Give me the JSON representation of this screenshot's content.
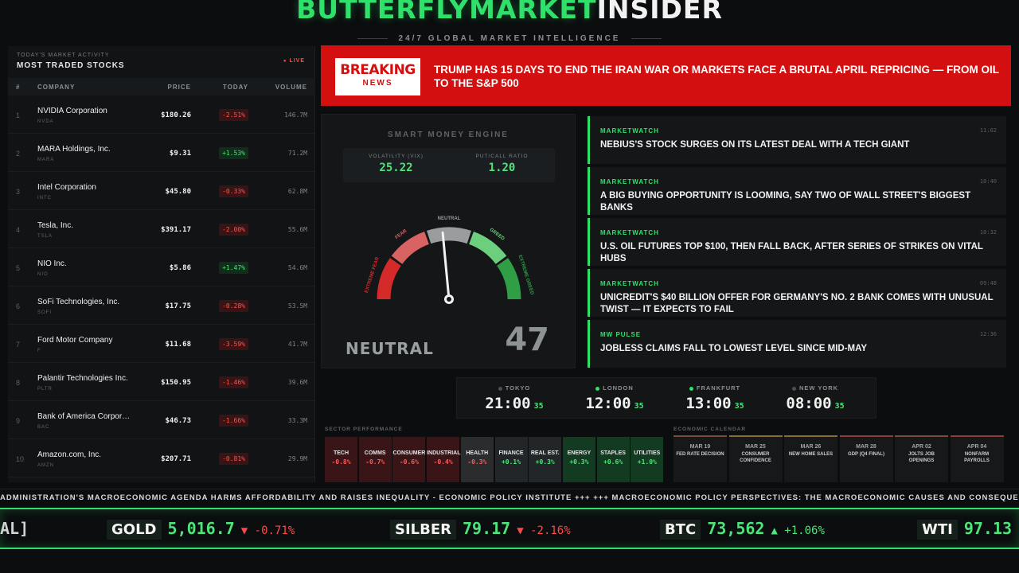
{
  "header": {
    "brand_green": "BUTTERFLYMARKET",
    "brand_white": "INSIDER",
    "tagline": "24/7 GLOBAL MARKET INTELLIGENCE"
  },
  "stocks": {
    "subtitle": "TODAY'S MARKET ACTIVITY",
    "title": "MOST TRADED STOCKS",
    "live": "LIVE",
    "columns": {
      "num": "#",
      "company": "COMPANY",
      "price": "PRICE",
      "today": "TODAY",
      "volume": "VOLUME"
    },
    "rows": [
      {
        "n": "1",
        "name": "NVIDIA Corporation",
        "ticker": "NVDA",
        "price": "$180.26",
        "change": "-2.51%",
        "dir": "neg",
        "volume": "146.7M"
      },
      {
        "n": "2",
        "name": "MARA Holdings, Inc.",
        "ticker": "MARA",
        "price": "$9.31",
        "change": "+1.53%",
        "dir": "pos",
        "volume": "71.2M"
      },
      {
        "n": "3",
        "name": "Intel Corporation",
        "ticker": "INTC",
        "price": "$45.80",
        "change": "-0.33%",
        "dir": "neg",
        "volume": "62.8M"
      },
      {
        "n": "4",
        "name": "Tesla, Inc.",
        "ticker": "TSLA",
        "price": "$391.17",
        "change": "-2.00%",
        "dir": "neg",
        "volume": "55.6M"
      },
      {
        "n": "5",
        "name": "NIO Inc.",
        "ticker": "NIO",
        "price": "$5.86",
        "change": "+1.47%",
        "dir": "pos",
        "volume": "54.6M"
      },
      {
        "n": "6",
        "name": "SoFi Technologies, Inc.",
        "ticker": "SOFI",
        "price": "$17.75",
        "change": "-0.28%",
        "dir": "neg",
        "volume": "53.5M"
      },
      {
        "n": "7",
        "name": "Ford Motor Company",
        "ticker": "F",
        "price": "$11.68",
        "change": "-3.59%",
        "dir": "neg",
        "volume": "41.7M"
      },
      {
        "n": "8",
        "name": "Palantir Technologies Inc.",
        "ticker": "PLTR",
        "price": "$150.95",
        "change": "-1.46%",
        "dir": "neg",
        "volume": "39.6M"
      },
      {
        "n": "9",
        "name": "Bank of America Corpor…",
        "ticker": "BAC",
        "price": "$46.73",
        "change": "-1.66%",
        "dir": "neg",
        "volume": "33.3M"
      },
      {
        "n": "10",
        "name": "Amazon.com, Inc.",
        "ticker": "AMZN",
        "price": "$207.71",
        "change": "-0.81%",
        "dir": "neg",
        "volume": "29.9M"
      }
    ]
  },
  "breaking": {
    "badge_top": "BREAKING",
    "badge_bottom": "NEWS",
    "headline": "TRUMP HAS 15 DAYS TO END THE IRAN WAR OR MARKETS FACE A BRUTAL APRIL REPRICING — FROM OIL TO THE S&P 500"
  },
  "smart_money": {
    "title": "SMART MONEY ENGINE",
    "vix_label": "VOLATILITY (VIX)",
    "vix_value": "25.22",
    "pcr_label": "PUT/CALL RATIO",
    "pcr_value": "1.20",
    "gauge_labels": {
      "extreme_fear": "EXTREME FEAR",
      "fear": "FEAR",
      "neutral": "NEUTRAL",
      "greed": "GREED",
      "extreme_greed": "EXTREME GREED"
    },
    "gauge_value": 47,
    "sentiment_label": "NEUTRAL",
    "sentiment_value": "47",
    "colors": {
      "extreme_fear": "#d42a2a",
      "fear": "#d96363",
      "neutral": "#9a9c9d",
      "greed": "#6bcf7d",
      "extreme_greed": "#2f9e45"
    }
  },
  "news": [
    {
      "source": "MARKETWATCH",
      "time": "11:02",
      "headline": "NEBIUS'S STOCK SURGES ON ITS LATEST DEAL WITH A TECH GIANT"
    },
    {
      "source": "MARKETWATCH",
      "time": "10:40",
      "headline": "A BIG BUYING OPPORTUNITY IS LOOMING, SAY TWO OF WALL STREET'S BIGGEST BANKS"
    },
    {
      "source": "MARKETWATCH",
      "time": "10:32",
      "headline": "U.S. OIL FUTURES TOP $100, THEN FALL BACK, AFTER SERIES OF STRIKES ON VITAL HUBS"
    },
    {
      "source": "MARKETWATCH",
      "time": "09:48",
      "headline": "UNICREDIT'S $40 BILLION OFFER FOR GERMANY'S NO. 2 BANK COMES WITH UNUSUAL TWIST — IT EXPECTS TO FAIL"
    },
    {
      "source": "MW PULSE",
      "time": "12:36",
      "headline": "JOBLESS CLAIMS FALL TO LOWEST LEVEL SINCE MID-MAY"
    }
  ],
  "clocks": [
    {
      "city": "TOKYO",
      "time": "21:00",
      "sec": "35",
      "status": "closed"
    },
    {
      "city": "LONDON",
      "time": "12:00",
      "sec": "35",
      "status": "open"
    },
    {
      "city": "FRANKFURT",
      "time": "13:00",
      "sec": "35",
      "status": "open"
    },
    {
      "city": "NEW YORK",
      "time": "08:00",
      "sec": "35",
      "status": "closed"
    }
  ],
  "sectors": {
    "title": "SECTOR PERFORMANCE",
    "items": [
      {
        "name": "TECH",
        "value": "-0.8%",
        "tone": "neg"
      },
      {
        "name": "COMMS",
        "value": "-0.7%",
        "tone": "neg"
      },
      {
        "name": "CONSUMER",
        "value": "-0.6%",
        "tone": "neg"
      },
      {
        "name": "INDUSTRIAL",
        "value": "-0.4%",
        "tone": "neg"
      },
      {
        "name": "HEALTH",
        "value": "-0.3%",
        "tone": "neutral"
      },
      {
        "name": "FINANCE",
        "value": "+0.1%",
        "tone": "flat"
      },
      {
        "name": "REAL EST.",
        "value": "+0.3%",
        "tone": "flat"
      },
      {
        "name": "ENERGY",
        "value": "+0.3%",
        "tone": "pos"
      },
      {
        "name": "STAPLES",
        "value": "+0.6%",
        "tone": "pos"
      },
      {
        "name": "UTILITIES",
        "value": "+1.0%",
        "tone": "pos"
      }
    ]
  },
  "calendar": {
    "title": "ECONOMIC CALENDAR",
    "events": [
      {
        "date": "MAR 19",
        "event": "FED RATE DECISION"
      },
      {
        "date": "MAR 25",
        "event": "CONSUMER CONFIDENCE"
      },
      {
        "date": "MAR 26",
        "event": "NEW HOME SALES"
      },
      {
        "date": "MAR 28",
        "event": "GDP (Q4 FINAL)"
      },
      {
        "date": "APR 02",
        "event": "JOLTS JOB OPENINGS"
      },
      {
        "date": "APR 04",
        "event": "NONFARM PAYROLLS"
      }
    ]
  },
  "news_ticker": "ADMINISTRATION'S MACROECONOMIC AGENDA HARMS AFFORDABILITY AND RAISES INEQUALITY - ECONOMIC POLICY INSTITUTE +++ +++ MACROECONOMIC POLICY PERSPECTIVES: THE MACROECONOMIC CAUSES AND CONSEQUENCES OF",
  "price_ticker": {
    "lead": "AL]",
    "items": [
      {
        "symbol": "GOLD",
        "value": "5,016.7",
        "change": "▼ -0.71%",
        "dir": "down"
      },
      {
        "symbol": "SILBER",
        "value": "79.17",
        "change": "▼ -2.16%",
        "dir": "down"
      },
      {
        "symbol": "BTC",
        "value": "73,562",
        "change": "▲ +1.06%",
        "dir": "up"
      },
      {
        "symbol": "WTI",
        "value": "97.13",
        "change": "",
        "dir": "up"
      }
    ]
  }
}
